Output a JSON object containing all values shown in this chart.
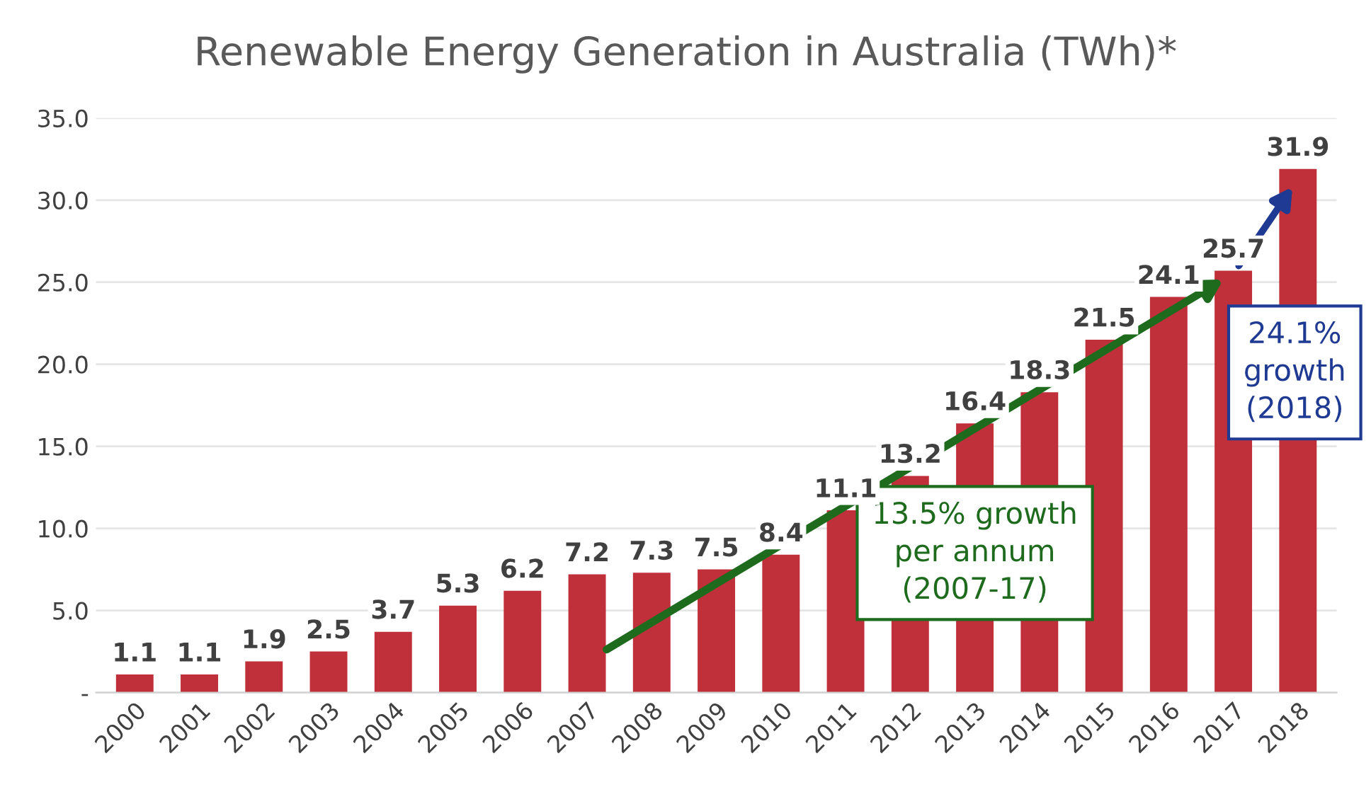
{
  "chart_data": {
    "type": "bar",
    "title": "Renewable Energy Generation in Australia (TWh)*",
    "categories": [
      "2000",
      "2001",
      "2002",
      "2003",
      "2004",
      "2005",
      "2006",
      "2007",
      "2008",
      "2009",
      "2010",
      "2011",
      "2012",
      "2013",
      "2014",
      "2015",
      "2016",
      "2017",
      "2018"
    ],
    "values": [
      1.1,
      1.1,
      1.9,
      2.5,
      3.7,
      5.3,
      6.2,
      7.2,
      7.3,
      7.5,
      8.4,
      11.1,
      13.2,
      16.4,
      18.3,
      21.5,
      24.1,
      25.7,
      31.9
    ],
    "color": "#c0303a",
    "ylim": [
      0,
      35
    ],
    "yticks": [
      {
        "value": 0,
        "label": "-"
      },
      {
        "value": 5,
        "label": "5.0"
      },
      {
        "value": 10,
        "label": "10.0"
      },
      {
        "value": 15,
        "label": "15.0"
      },
      {
        "value": 20,
        "label": "20.0"
      },
      {
        "value": 25,
        "label": "25.0"
      },
      {
        "value": 30,
        "label": "30.0"
      },
      {
        "value": 35,
        "label": "35.0"
      }
    ],
    "grid": "y",
    "data_labels": true,
    "annotations": [
      "13.5% growth\nper annum\n(2007-17)",
      "24.1%\ngrowth\n(2018)"
    ]
  }
}
